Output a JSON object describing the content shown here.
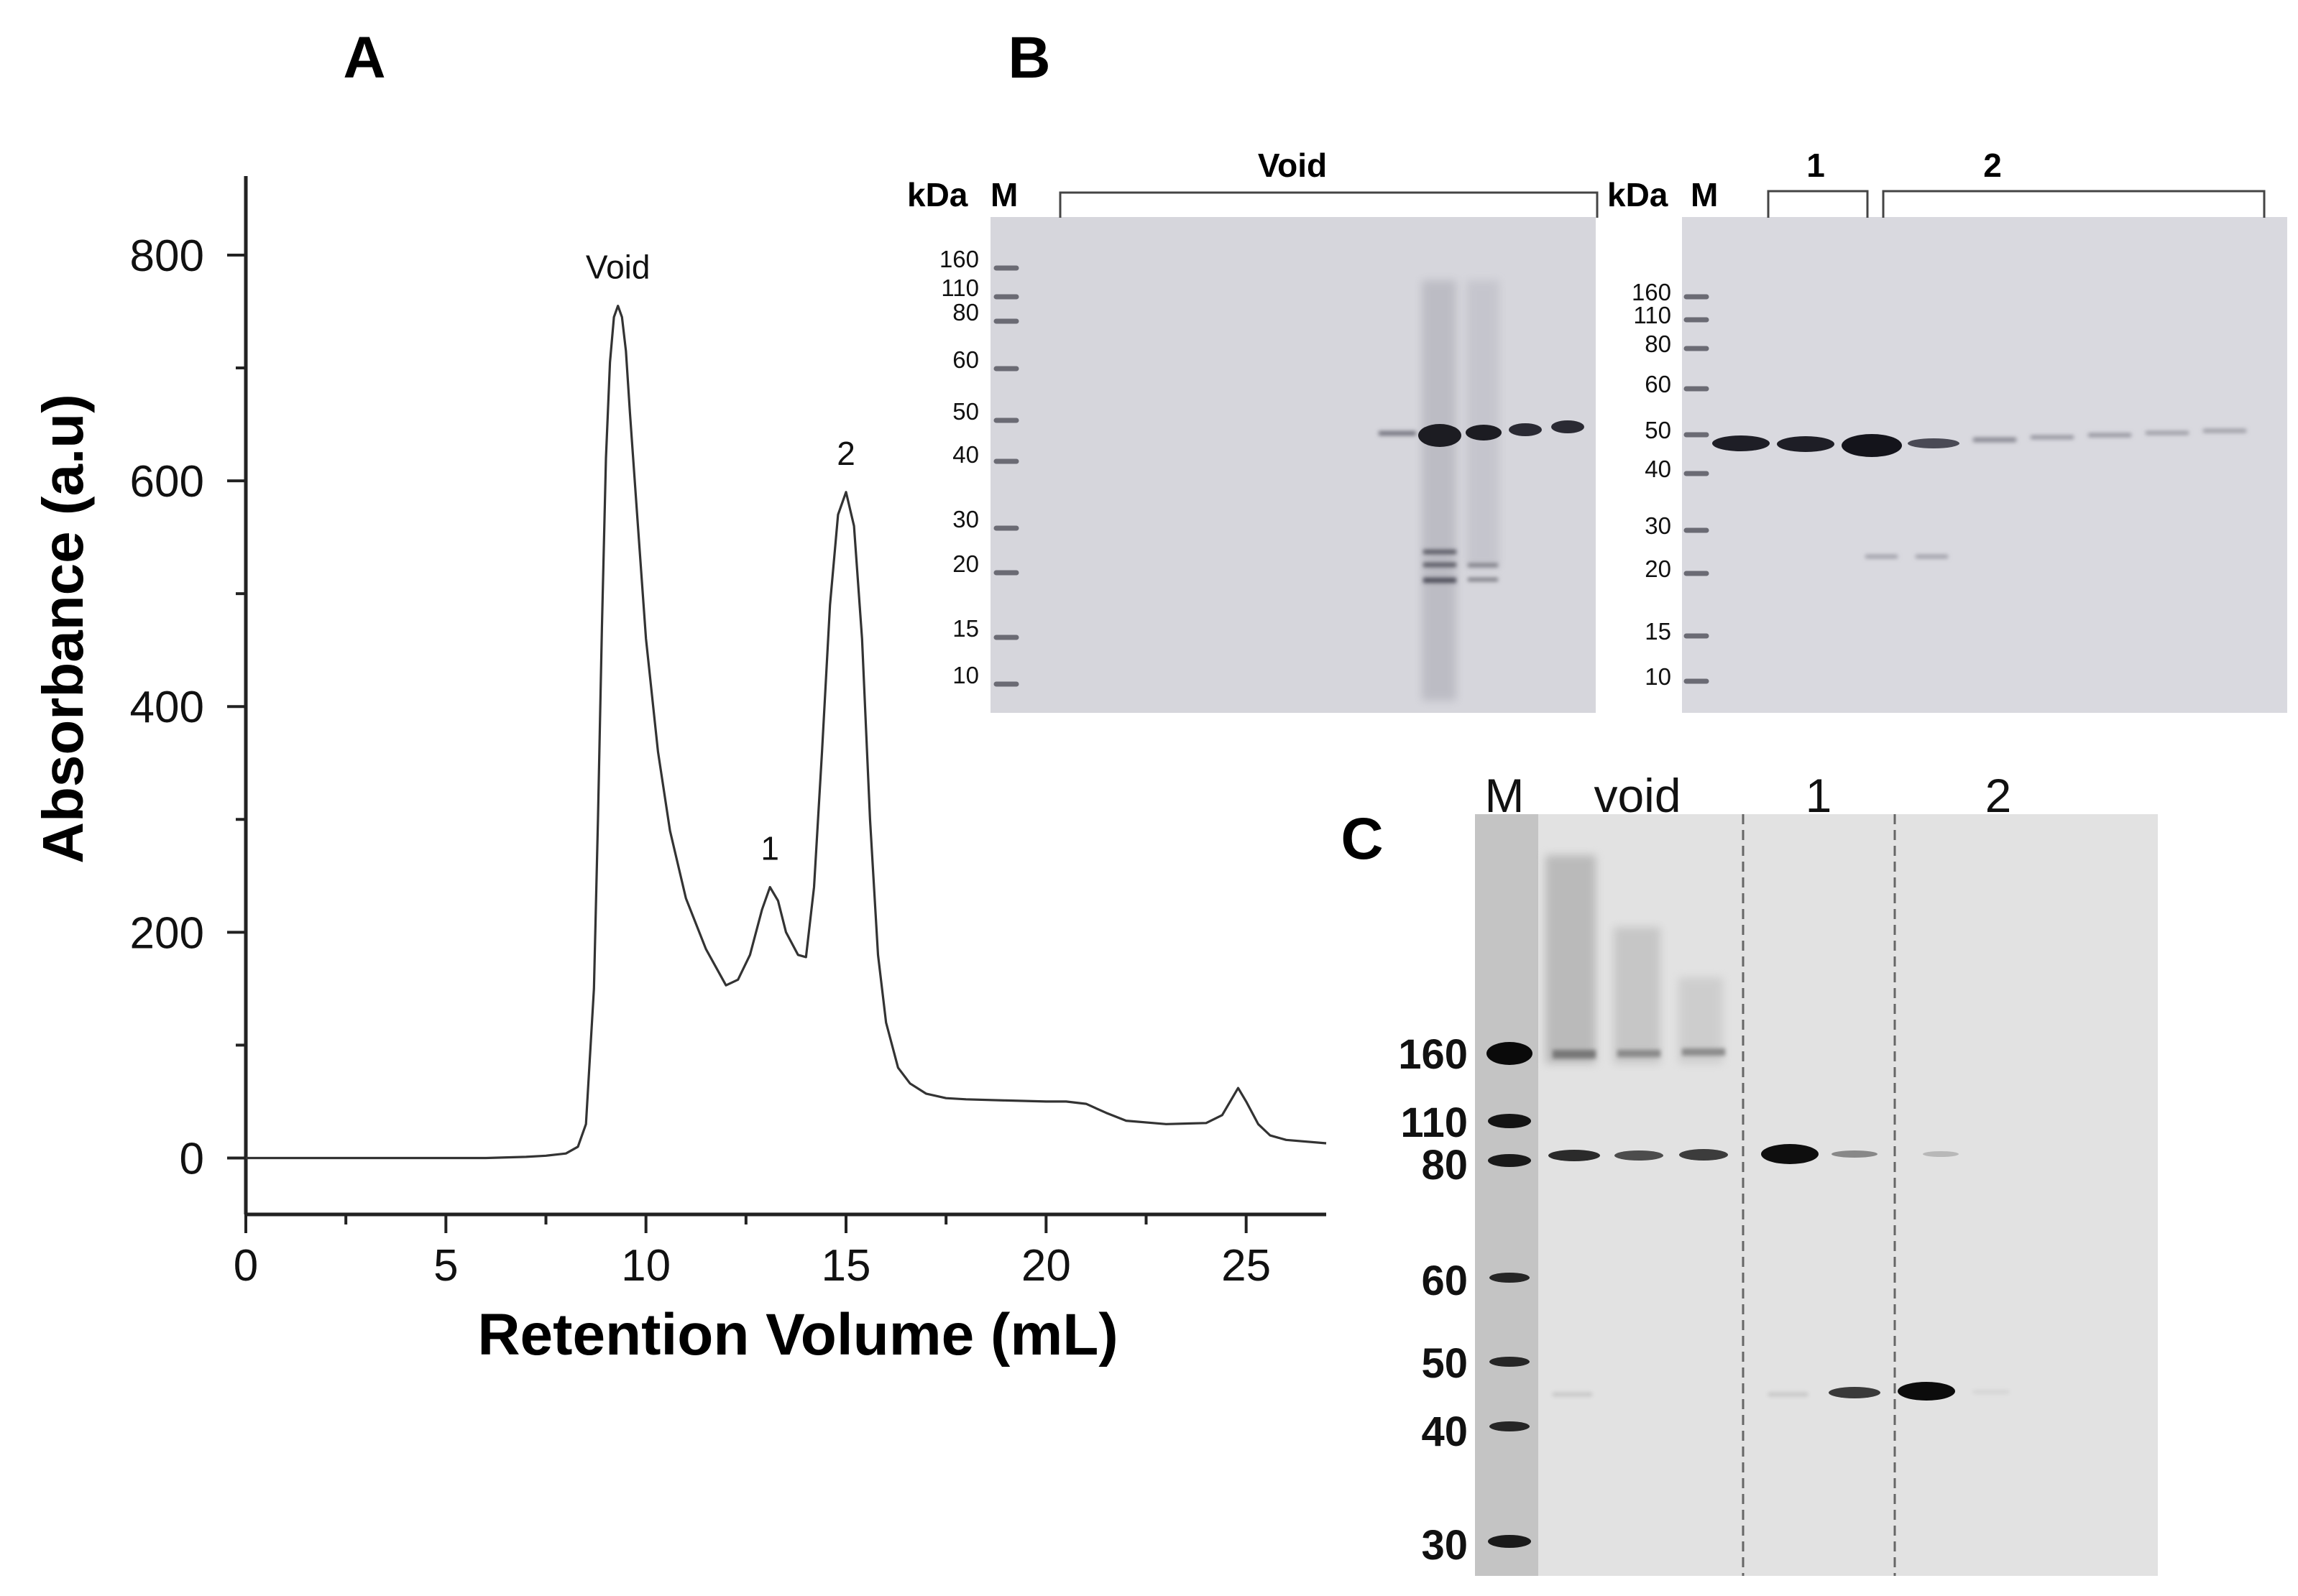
{
  "panels": {
    "A": {
      "letter": "A"
    },
    "B": {
      "letter": "B"
    },
    "C": {
      "letter": "C"
    }
  },
  "chart_data": {
    "type": "line",
    "xlabel": "Retention Volume (mL)",
    "ylabel": "Absorbance (a.u)",
    "xlim": [
      0,
      27
    ],
    "ylim": [
      -50,
      870
    ],
    "xticks": [
      0,
      5,
      10,
      15,
      20,
      25
    ],
    "yticks": [
      0,
      200,
      400,
      600,
      800
    ],
    "grid": false,
    "series": [
      {
        "x": [
          0,
          2,
          4,
          6,
          7,
          7.5,
          8,
          8.3,
          8.5,
          8.7,
          8.8,
          8.9,
          9.0,
          9.1,
          9.2,
          9.3,
          9.4,
          9.5,
          9.6,
          9.8,
          10.0,
          10.3,
          10.6,
          11.0,
          11.5,
          12.0,
          12.3,
          12.6,
          12.9,
          13.1,
          13.3,
          13.5,
          13.8,
          14.0,
          14.2,
          14.4,
          14.6,
          14.8,
          15.0,
          15.2,
          15.4,
          15.6,
          15.8,
          16.0,
          16.3,
          16.6,
          17.0,
          17.5,
          18.0,
          19.0,
          20.0,
          20.5,
          21.0,
          21.5,
          22.0,
          23.0,
          24.0,
          24.4,
          24.6,
          24.8,
          25.0,
          25.3,
          25.6,
          26.0,
          27.0
        ],
        "values": [
          0,
          0,
          0,
          0,
          1,
          2,
          4,
          10,
          30,
          150,
          300,
          470,
          620,
          705,
          745,
          755,
          745,
          715,
          660,
          560,
          460,
          360,
          290,
          230,
          185,
          153,
          158,
          180,
          220,
          240,
          228,
          200,
          180,
          178,
          240,
          360,
          490,
          570,
          590,
          560,
          460,
          300,
          180,
          120,
          80,
          66,
          57,
          53,
          52,
          51,
          50,
          50,
          48,
          40,
          33,
          30,
          31,
          38,
          50,
          62,
          50,
          30,
          20,
          16,
          13
        ]
      }
    ],
    "annotations": [
      {
        "text": "Void",
        "x": 9.3,
        "y": 755
      },
      {
        "text": "1",
        "x": 13.1,
        "y": 240
      },
      {
        "text": "2",
        "x": 15.0,
        "y": 590
      }
    ]
  },
  "gel_B1": {
    "unit_label": "kDa",
    "marker_label": "M",
    "group_labels": [
      "Void"
    ],
    "marker_sizes": [
      "160",
      "110",
      "80",
      "60",
      "50",
      "40",
      "30",
      "20",
      "15",
      "10"
    ]
  },
  "gel_B2": {
    "unit_label": "kDa",
    "marker_label": "M",
    "group_labels": [
      "1",
      "2"
    ],
    "marker_sizes": [
      "160",
      "110",
      "80",
      "60",
      "50",
      "40",
      "30",
      "20",
      "15",
      "10"
    ]
  },
  "gel_C": {
    "lane_labels": [
      "M",
      "void",
      "1",
      "2"
    ],
    "marker_sizes": [
      "160",
      "110",
      "80",
      "60",
      "50",
      "40",
      "30"
    ]
  }
}
